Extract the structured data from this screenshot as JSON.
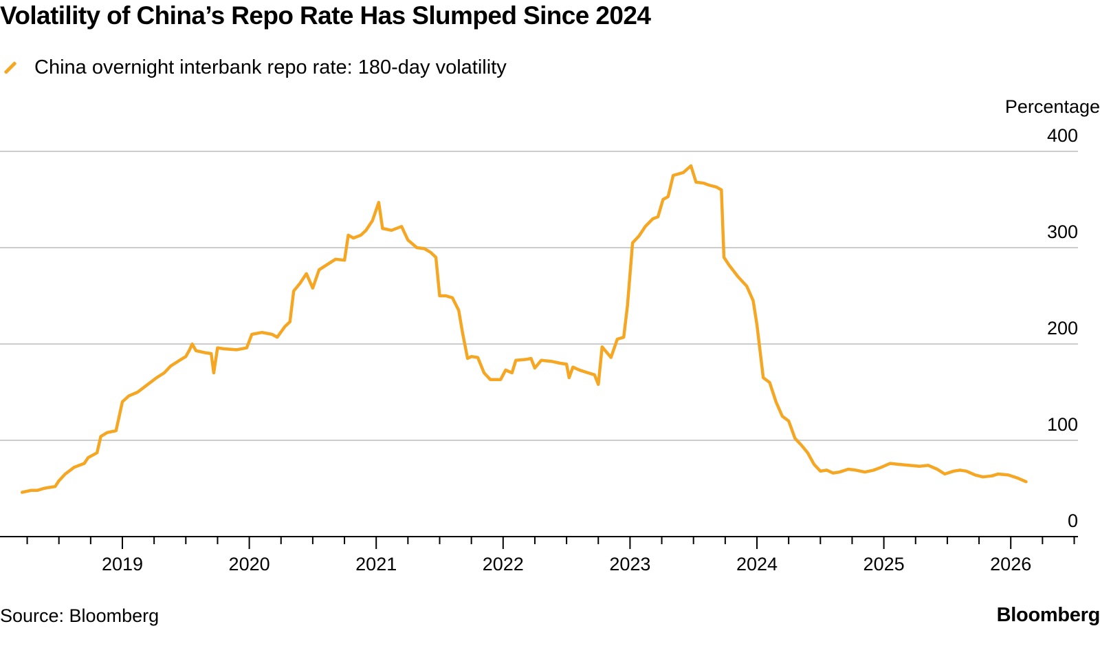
{
  "chart_data": {
    "type": "line",
    "title": "Volatility of China’s Repo Rate Has Slumped Since 2024",
    "ylabel": "Percentage",
    "xlabel": "",
    "ylim": [
      0,
      400
    ],
    "xlim": [
      2018.2,
      2026.5
    ],
    "yticks": [
      "0",
      "100",
      "200",
      "300",
      "400"
    ],
    "xticks": [
      "2019",
      "2020",
      "2021",
      "2022",
      "2023",
      "2024",
      "2025",
      "2026"
    ],
    "grid": true,
    "legend_position": "top-left",
    "series": [
      {
        "name": "China overnight interbank repo rate: 180-day volatility",
        "color": "#f5a623",
        "points": [
          [
            2018.21,
            46
          ],
          [
            2018.28,
            48
          ],
          [
            2018.33,
            48
          ],
          [
            2018.38,
            50
          ],
          [
            2018.42,
            51
          ],
          [
            2018.47,
            52
          ],
          [
            2018.5,
            58
          ],
          [
            2018.55,
            65
          ],
          [
            2018.62,
            72
          ],
          [
            2018.7,
            76
          ],
          [
            2018.73,
            82
          ],
          [
            2018.8,
            87
          ],
          [
            2018.83,
            104
          ],
          [
            2018.88,
            108
          ],
          [
            2018.95,
            110
          ],
          [
            2019.0,
            140
          ],
          [
            2019.05,
            146
          ],
          [
            2019.12,
            150
          ],
          [
            2019.2,
            158
          ],
          [
            2019.27,
            165
          ],
          [
            2019.33,
            170
          ],
          [
            2019.38,
            177
          ],
          [
            2019.45,
            183
          ],
          [
            2019.5,
            187
          ],
          [
            2019.53,
            194
          ],
          [
            2019.55,
            200
          ],
          [
            2019.58,
            193
          ],
          [
            2019.65,
            191
          ],
          [
            2019.7,
            190
          ],
          [
            2019.72,
            170
          ],
          [
            2019.75,
            196
          ],
          [
            2019.8,
            195
          ],
          [
            2019.9,
            194
          ],
          [
            2019.98,
            196
          ],
          [
            2020.02,
            210
          ],
          [
            2020.1,
            212
          ],
          [
            2020.18,
            210
          ],
          [
            2020.22,
            207
          ],
          [
            2020.28,
            218
          ],
          [
            2020.32,
            223
          ],
          [
            2020.35,
            255
          ],
          [
            2020.4,
            263
          ],
          [
            2020.45,
            273
          ],
          [
            2020.5,
            258
          ],
          [
            2020.55,
            277
          ],
          [
            2020.62,
            283
          ],
          [
            2020.68,
            288
          ],
          [
            2020.75,
            287
          ],
          [
            2020.78,
            313
          ],
          [
            2020.82,
            310
          ],
          [
            2020.88,
            313
          ],
          [
            2020.92,
            318
          ],
          [
            2020.97,
            328
          ],
          [
            2021.02,
            347
          ],
          [
            2021.05,
            320
          ],
          [
            2021.12,
            318
          ],
          [
            2021.2,
            322
          ],
          [
            2021.25,
            308
          ],
          [
            2021.32,
            300
          ],
          [
            2021.38,
            299
          ],
          [
            2021.43,
            295
          ],
          [
            2021.47,
            290
          ],
          [
            2021.5,
            250
          ],
          [
            2021.55,
            250
          ],
          [
            2021.6,
            248
          ],
          [
            2021.65,
            235
          ],
          [
            2021.68,
            212
          ],
          [
            2021.72,
            185
          ],
          [
            2021.75,
            187
          ],
          [
            2021.8,
            186
          ],
          [
            2021.85,
            170
          ],
          [
            2021.9,
            163
          ],
          [
            2021.98,
            163
          ],
          [
            2022.02,
            173
          ],
          [
            2022.07,
            170
          ],
          [
            2022.1,
            183
          ],
          [
            2022.18,
            184
          ],
          [
            2022.22,
            185
          ],
          [
            2022.25,
            175
          ],
          [
            2022.3,
            183
          ],
          [
            2022.38,
            182
          ],
          [
            2022.45,
            180
          ],
          [
            2022.5,
            179
          ],
          [
            2022.52,
            165
          ],
          [
            2022.55,
            176
          ],
          [
            2022.6,
            173
          ],
          [
            2022.67,
            170
          ],
          [
            2022.72,
            168
          ],
          [
            2022.75,
            158
          ],
          [
            2022.78,
            197
          ],
          [
            2022.85,
            186
          ],
          [
            2022.9,
            205
          ],
          [
            2022.95,
            207
          ],
          [
            2022.98,
            240
          ],
          [
            2023.02,
            305
          ],
          [
            2023.07,
            312
          ],
          [
            2023.12,
            322
          ],
          [
            2023.18,
            330
          ],
          [
            2023.22,
            332
          ],
          [
            2023.26,
            350
          ],
          [
            2023.3,
            353
          ],
          [
            2023.34,
            375
          ],
          [
            2023.42,
            378
          ],
          [
            2023.48,
            385
          ],
          [
            2023.52,
            368
          ],
          [
            2023.58,
            367
          ],
          [
            2023.62,
            365
          ],
          [
            2023.68,
            363
          ],
          [
            2023.72,
            360
          ],
          [
            2023.74,
            290
          ],
          [
            2023.78,
            282
          ],
          [
            2023.85,
            270
          ],
          [
            2023.92,
            260
          ],
          [
            2023.97,
            245
          ],
          [
            2024.0,
            220
          ],
          [
            2024.05,
            165
          ],
          [
            2024.1,
            160
          ],
          [
            2024.15,
            140
          ],
          [
            2024.2,
            125
          ],
          [
            2024.25,
            120
          ],
          [
            2024.3,
            102
          ],
          [
            2024.35,
            95
          ],
          [
            2024.4,
            87
          ],
          [
            2024.45,
            75
          ],
          [
            2024.5,
            68
          ],
          [
            2024.55,
            69
          ],
          [
            2024.6,
            66
          ],
          [
            2024.65,
            67
          ],
          [
            2024.72,
            70
          ],
          [
            2024.78,
            69
          ],
          [
            2024.85,
            67
          ],
          [
            2024.92,
            69
          ],
          [
            2024.98,
            72
          ],
          [
            2025.05,
            76
          ],
          [
            2025.12,
            75
          ],
          [
            2025.2,
            74
          ],
          [
            2025.28,
            73
          ],
          [
            2025.35,
            74
          ],
          [
            2025.42,
            70
          ],
          [
            2025.48,
            65
          ],
          [
            2025.55,
            68
          ],
          [
            2025.6,
            69
          ],
          [
            2025.65,
            68
          ],
          [
            2025.72,
            64
          ],
          [
            2025.78,
            62
          ],
          [
            2025.85,
            63
          ],
          [
            2025.9,
            65
          ],
          [
            2025.98,
            64
          ],
          [
            2026.05,
            61
          ],
          [
            2026.12,
            57
          ]
        ]
      }
    ]
  },
  "footer": {
    "source": "Source: Bloomberg",
    "brand": "Bloomberg"
  }
}
